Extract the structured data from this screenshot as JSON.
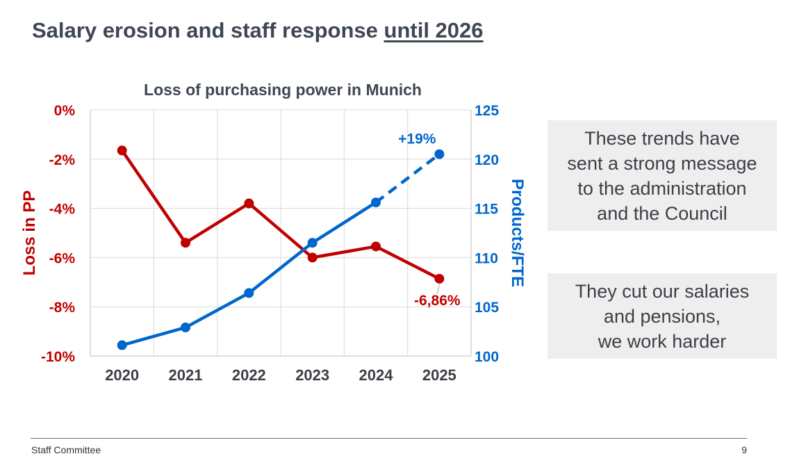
{
  "slide": {
    "title_main": "Salary erosion and staff response ",
    "title_underlined": "until 2026",
    "message_1": "These trends have\nsent a strong message\nto the administration\nand the Council",
    "message_2": "They cut our salaries\nand pensions,\nwe work harder",
    "footer_left": "Staff Committee",
    "page_number": "9"
  },
  "chart_data": {
    "type": "line",
    "title": "Loss of purchasing power in Munich",
    "categories": [
      "2020",
      "2021",
      "2022",
      "2023",
      "2024",
      "2025"
    ],
    "y_left": {
      "label": "Loss in PP",
      "range": [
        -10,
        0
      ],
      "ticks": [
        0,
        -2,
        -4,
        -6,
        -8,
        -10
      ],
      "tick_labels": [
        "0%",
        "-2%",
        "-4%",
        "-6%",
        "-8%",
        "-10%"
      ],
      "color": "#c00000"
    },
    "y_right": {
      "label": "Products/FTE",
      "range": [
        100,
        125
      ],
      "ticks": [
        100,
        105,
        110,
        115,
        120,
        125
      ],
      "tick_labels": [
        "100",
        "105",
        "110",
        "115",
        "120",
        "125"
      ],
      "color": "#0066cc"
    },
    "series": [
      {
        "axis": "left",
        "color": "#c00000",
        "values": [
          -1.65,
          -5.4,
          -3.8,
          -6.0,
          -5.55,
          -6.86
        ],
        "dashed_from_index": null,
        "annotation": {
          "index": 5,
          "text": "-6,86%"
        }
      },
      {
        "axis": "right",
        "color": "#0066cc",
        "values": [
          101.1,
          102.9,
          106.4,
          111.5,
          115.6,
          120.5
        ],
        "dashed_from_index": 4,
        "annotation": {
          "index": 5,
          "text": "+19%"
        }
      }
    ],
    "grid": true,
    "legend": "none"
  }
}
